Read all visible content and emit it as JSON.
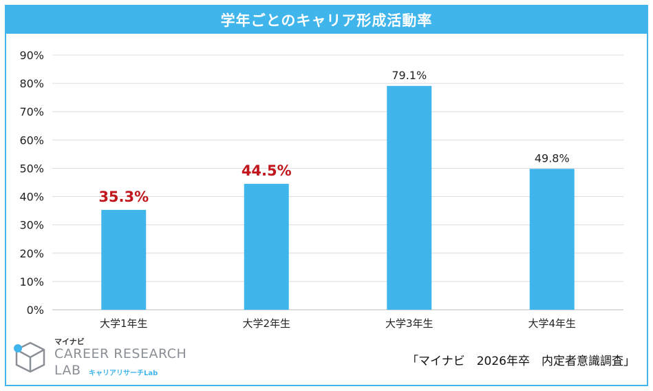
{
  "chart_data": {
    "type": "bar",
    "title": "学年ごとのキャリア形成活動率",
    "categories": [
      "大学1年生",
      "大学2年生",
      "大学3年生",
      "大学4年生"
    ],
    "values": [
      35.3,
      44.5,
      79.1,
      49.8
    ],
    "value_labels": [
      "35.3%",
      "44.5%",
      "79.1%",
      "49.8%"
    ],
    "highlighted": [
      true,
      true,
      false,
      false
    ],
    "ylim": [
      0,
      90
    ],
    "yticks": [
      "0%",
      "10%",
      "20%",
      "30%",
      "40%",
      "50%",
      "60%",
      "70%",
      "80%",
      "90%"
    ],
    "grid": true,
    "colors": {
      "bar": "#3fb5eb",
      "highlight_label": "#c0161c",
      "label": "#222222"
    }
  },
  "source": "「マイナビ　2026年卒　内定者意識調査」",
  "logo": {
    "brand": "マイナビ",
    "line1": "CAREER RESEARCH",
    "line2": "LAB",
    "sub": "キャリアリサーチLab"
  }
}
